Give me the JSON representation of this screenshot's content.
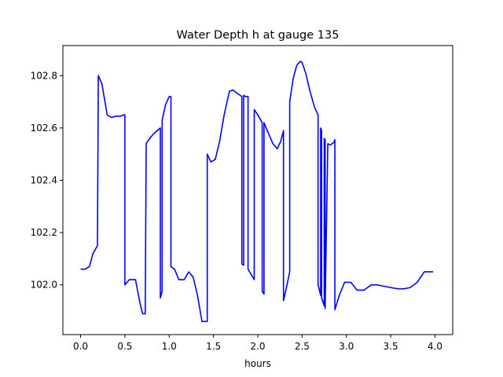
{
  "chart_data": {
    "type": "line",
    "title": "Water Depth h at gauge 135",
    "xlabel": "hours",
    "ylabel": "",
    "xlim": [
      -0.2,
      4.2
    ],
    "ylim": [
      101.81,
      102.915
    ],
    "xticks": [
      0.0,
      0.5,
      1.0,
      1.5,
      2.0,
      2.5,
      3.0,
      3.5,
      4.0
    ],
    "xtick_labels": [
      "0.0",
      "0.5",
      "1.0",
      "1.5",
      "2.0",
      "2.5",
      "3.0",
      "3.5",
      "4.0"
    ],
    "yticks": [
      102.0,
      102.2,
      102.4,
      102.6,
      102.8
    ],
    "ytick_labels": [
      "102.0",
      "102.2",
      "102.4",
      "102.6",
      "102.8"
    ],
    "grid": false,
    "legend": "none",
    "series": [
      {
        "color": "#0000ff",
        "x": [
          0.0,
          0.05,
          0.1,
          0.14,
          0.19,
          0.2,
          0.2,
          0.24,
          0.3,
          0.35,
          0.4,
          0.45,
          0.49,
          0.5,
          0.5,
          0.55,
          0.62,
          0.67,
          0.7,
          0.73,
          0.74,
          0.74,
          0.78,
          0.83,
          0.9,
          0.9,
          0.92,
          0.92,
          0.96,
          1.0,
          1.02,
          1.02,
          1.06,
          1.11,
          1.17,
          1.22,
          1.27,
          1.32,
          1.37,
          1.43,
          1.43,
          1.47,
          1.52,
          1.57,
          1.62,
          1.68,
          1.72,
          1.78,
          1.82,
          1.82,
          1.84,
          1.84,
          1.86,
          1.89,
          1.89,
          1.96,
          1.96,
          2.0,
          2.05,
          2.05,
          2.07,
          2.07,
          2.12,
          2.17,
          2.22,
          2.26,
          2.29,
          2.29,
          2.33,
          2.36,
          2.36,
          2.4,
          2.44,
          2.48,
          2.5,
          2.54,
          2.59,
          2.64,
          2.68,
          2.68,
          2.71,
          2.71,
          2.72,
          2.72,
          2.75,
          2.75,
          2.76,
          2.76,
          2.79,
          2.82,
          2.86,
          2.87,
          2.87,
          2.92,
          2.98,
          3.05,
          3.12,
          3.2,
          3.28,
          3.35,
          3.42,
          3.5,
          3.58,
          3.65,
          3.72,
          3.8,
          3.88,
          3.95,
          3.98
        ],
        "y": [
          102.06,
          102.06,
          102.07,
          102.12,
          102.15,
          102.8,
          102.8,
          102.77,
          102.65,
          102.64,
          102.645,
          102.645,
          102.65,
          102.65,
          102.0,
          102.02,
          102.02,
          101.93,
          101.89,
          101.89,
          102.54,
          102.54,
          102.56,
          102.58,
          102.6,
          101.95,
          101.975,
          102.63,
          102.69,
          102.72,
          102.72,
          102.07,
          102.06,
          102.02,
          102.02,
          102.05,
          102.03,
          101.96,
          101.86,
          101.86,
          102.5,
          102.47,
          102.48,
          102.55,
          102.65,
          102.74,
          102.745,
          102.73,
          102.72,
          102.08,
          102.075,
          102.725,
          102.72,
          102.72,
          102.06,
          102.02,
          102.67,
          102.65,
          102.62,
          101.975,
          101.965,
          102.62,
          102.58,
          102.54,
          102.52,
          102.55,
          102.59,
          101.94,
          102.0,
          102.05,
          102.7,
          102.79,
          102.84,
          102.855,
          102.85,
          102.81,
          102.74,
          102.68,
          102.65,
          102.0,
          101.96,
          102.6,
          102.59,
          101.95,
          101.92,
          102.56,
          102.555,
          101.91,
          102.54,
          102.535,
          102.545,
          102.555,
          101.905,
          101.96,
          102.01,
          102.01,
          101.98,
          101.98,
          102.0,
          102.0,
          101.995,
          101.99,
          101.985,
          101.985,
          101.99,
          102.01,
          102.05,
          102.05,
          102.05
        ]
      }
    ]
  }
}
